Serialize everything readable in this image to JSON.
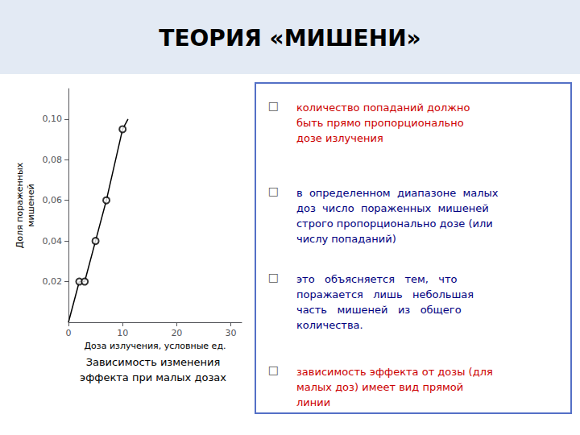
{
  "chart_data": {
    "type": "line",
    "title": "ТЕОРИЯ «МИШЕНИ»",
    "x_label": "Доза излучения, условные ед.",
    "y_label": "Доля пораженных\nмишеней",
    "series": [
      {
        "type": "line",
        "color": "#000000",
        "x": [
          0,
          2,
          3,
          5,
          7,
          10,
          11
        ],
        "values": [
          0,
          0.02,
          0.02,
          0.04,
          0.06,
          0.095,
          0.1
        ]
      },
      {
        "type": "scatter",
        "marker": "open_circle",
        "color": "#000000",
        "x": [
          2,
          3,
          5,
          7,
          10
        ],
        "values": [
          0.02,
          0.02,
          0.04,
          0.06,
          0.095
        ]
      }
    ],
    "xlim": [
      0,
      32
    ],
    "ylim": [
      0,
      0.115
    ],
    "xticks": [
      0,
      10,
      20,
      30
    ],
    "yticks": [
      {
        "value": 0.02,
        "label": "0,02"
      },
      {
        "value": 0.04,
        "label": "0,04"
      },
      {
        "value": 0.06,
        "label": "0,06"
      },
      {
        "value": 0.08,
        "label": "0,08"
      },
      {
        "value": 0.1,
        "label": "0,10"
      }
    ],
    "grid": false,
    "annotations": [
      {
        "text": "Зависимость изменения\nэффекта при малых дозах"
      },
      {
        "bullet": "□",
        "text": "количество попаданий должно\nбыть прямо пропорционально\nдозе излучения",
        "color": "#cc0000"
      },
      {
        "bullet": "□",
        "text": "в  определенном  диапазоне  малых\nдоз  число  пораженных  мишеней\nстрого пропорционально дозе (или\nчислу попаданий)",
        "color": "#000080"
      },
      {
        "bullet": "□",
        "text": "это   объясняется   тем,   что\nпоражается   лишь   небольшая\nчасть   мишеней   из   общего\nколичества.",
        "color": "#000080"
      },
      {
        "bullet": "□",
        "text": "зависимость эффекта от дозы (для\nмалых доз) имеет вид прямой\nлинии",
        "color": "#cc0000"
      }
    ]
  }
}
